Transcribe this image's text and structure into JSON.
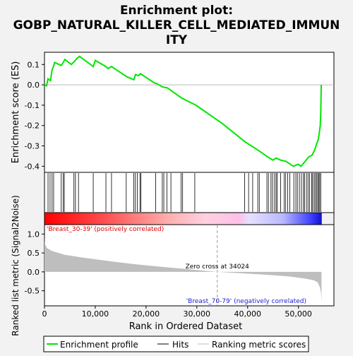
{
  "chart_data": {
    "type": "line",
    "title_lines": [
      "Enrichment plot:",
      "GOBP_NATURAL_KILLER_CELL_MEDIATED_IMMUN",
      "ITY"
    ],
    "es_panel": {
      "ylabel": "Enrichment score (ES)",
      "ylim": [
        -0.43,
        0.16
      ],
      "yticks": [
        0.1,
        0.0,
        -0.1,
        -0.2,
        -0.3,
        -0.4
      ],
      "ytick_labels": [
        "0.1",
        "0.0",
        "-0.1",
        "-0.2",
        "-0.3",
        "-0.4"
      ],
      "series": [
        {
          "name": "Enrichment profile",
          "color": "#00e600",
          "points": [
            [
              0,
              0
            ],
            [
              400,
              -0.005
            ],
            [
              700,
              0.03
            ],
            [
              1200,
              0.02
            ],
            [
              1500,
              0.075
            ],
            [
              1700,
              0.085
            ],
            [
              2000,
              0.11
            ],
            [
              3300,
              0.095
            ],
            [
              3700,
              0.11
            ],
            [
              4000,
              0.125
            ],
            [
              5300,
              0.1
            ],
            [
              5900,
              0.115
            ],
            [
              6400,
              0.13
            ],
            [
              6900,
              0.14
            ],
            [
              9600,
              0.09
            ],
            [
              10000,
              0.12
            ],
            [
              12100,
              0.09
            ],
            [
              12500,
              0.08
            ],
            [
              13200,
              0.09
            ],
            [
              16200,
              0.04
            ],
            [
              17600,
              0.025
            ],
            [
              17900,
              0.05
            ],
            [
              18500,
              0.045
            ],
            [
              18900,
              0.055
            ],
            [
              21600,
              0.01
            ],
            [
              22200,
              0.005
            ],
            [
              23200,
              -0.01
            ],
            [
              24200,
              -0.015
            ],
            [
              27000,
              -0.065
            ],
            [
              29800,
              -0.1
            ],
            [
              35000,
              -0.19
            ],
            [
              39500,
              -0.28
            ],
            [
              42000,
              -0.32
            ],
            [
              44000,
              -0.355
            ],
            [
              45000,
              -0.37
            ],
            [
              45600,
              -0.36
            ],
            [
              46500,
              -0.37
            ],
            [
              47500,
              -0.375
            ],
            [
              49000,
              -0.4
            ],
            [
              49500,
              -0.395
            ],
            [
              50000,
              -0.39
            ],
            [
              50500,
              -0.4
            ],
            [
              51200,
              -0.38
            ],
            [
              52000,
              -0.355
            ],
            [
              52700,
              -0.345
            ],
            [
              53200,
              -0.32
            ],
            [
              53600,
              -0.29
            ],
            [
              53900,
              -0.27
            ],
            [
              54100,
              -0.24
            ],
            [
              54300,
              -0.2
            ],
            [
              54400,
              -0.14
            ],
            [
              54450,
              -0.07
            ],
            [
              54500,
              0.0
            ]
          ]
        }
      ]
    },
    "hits_x": [
      700,
      1100,
      1500,
      1800,
      3300,
      3700,
      3900,
      5800,
      6100,
      6700,
      9600,
      12100,
      13200,
      16100,
      17600,
      17900,
      18300,
      18800,
      19000,
      21900,
      23200,
      23500,
      24100,
      24900,
      26900,
      27200,
      29600,
      39400,
      40200,
      41000,
      42000,
      42300,
      43800,
      44100,
      44600,
      44900,
      45300,
      45600,
      45800,
      46500,
      47200,
      47500,
      47900,
      48300,
      49100,
      49500,
      49800,
      50200,
      50600,
      51000,
      51200,
      51600,
      51900,
      52200,
      52600,
      52800,
      53100,
      53300,
      53600,
      53800,
      54000,
      54200,
      54400
    ],
    "bar": {
      "left_label": "'Breast_30-39' (positively correlated)",
      "right_label": "'Breast_70-79' (negatively correlated)"
    },
    "metric_panel": {
      "ylabel": "Ranked list metric (Signal2Noise)",
      "ylim": [
        -0.9,
        1.25
      ],
      "yticks": [
        1.0,
        0.5,
        0.0,
        -0.5
      ],
      "ytick_labels": [
        "1.0",
        "0.5",
        "0.0",
        "-0.5"
      ],
      "zero_cross_label": "Zero cross at 34024",
      "zero_cross": 34024,
      "curve": [
        [
          0,
          1.0
        ],
        [
          30,
          0.8
        ],
        [
          150,
          0.72
        ],
        [
          500,
          0.63
        ],
        [
          1500,
          0.55
        ],
        [
          4000,
          0.45
        ],
        [
          8000,
          0.37
        ],
        [
          13000,
          0.28
        ],
        [
          18000,
          0.2
        ],
        [
          24000,
          0.12
        ],
        [
          30000,
          0.05
        ],
        [
          34024,
          0.0
        ],
        [
          39000,
          -0.04
        ],
        [
          44000,
          -0.08
        ],
        [
          48000,
          -0.12
        ],
        [
          51000,
          -0.17
        ],
        [
          53000,
          -0.22
        ],
        [
          53800,
          -0.28
        ],
        [
          54200,
          -0.4
        ],
        [
          54450,
          -0.55
        ],
        [
          54550,
          -0.8
        ]
      ]
    },
    "xaxis": {
      "label": "Rank in Ordered Dataset",
      "xlim": [
        0,
        57000
      ],
      "ticks": [
        0,
        10000,
        20000,
        30000,
        40000,
        50000
      ],
      "tick_labels": [
        "0",
        "10,000",
        "20,000",
        "30,000",
        "40,000",
        "50,000"
      ],
      "n_genes": 54600
    },
    "legend": {
      "items": [
        "Enrichment profile",
        "Hits",
        "Ranking metric scores"
      ],
      "position": "bottom"
    },
    "colors": {
      "profile": "#00e600",
      "hits": "#000000",
      "metric_fill": "#bebebe",
      "positive_label": "#e00000",
      "negative_label": "#2020d0"
    }
  }
}
